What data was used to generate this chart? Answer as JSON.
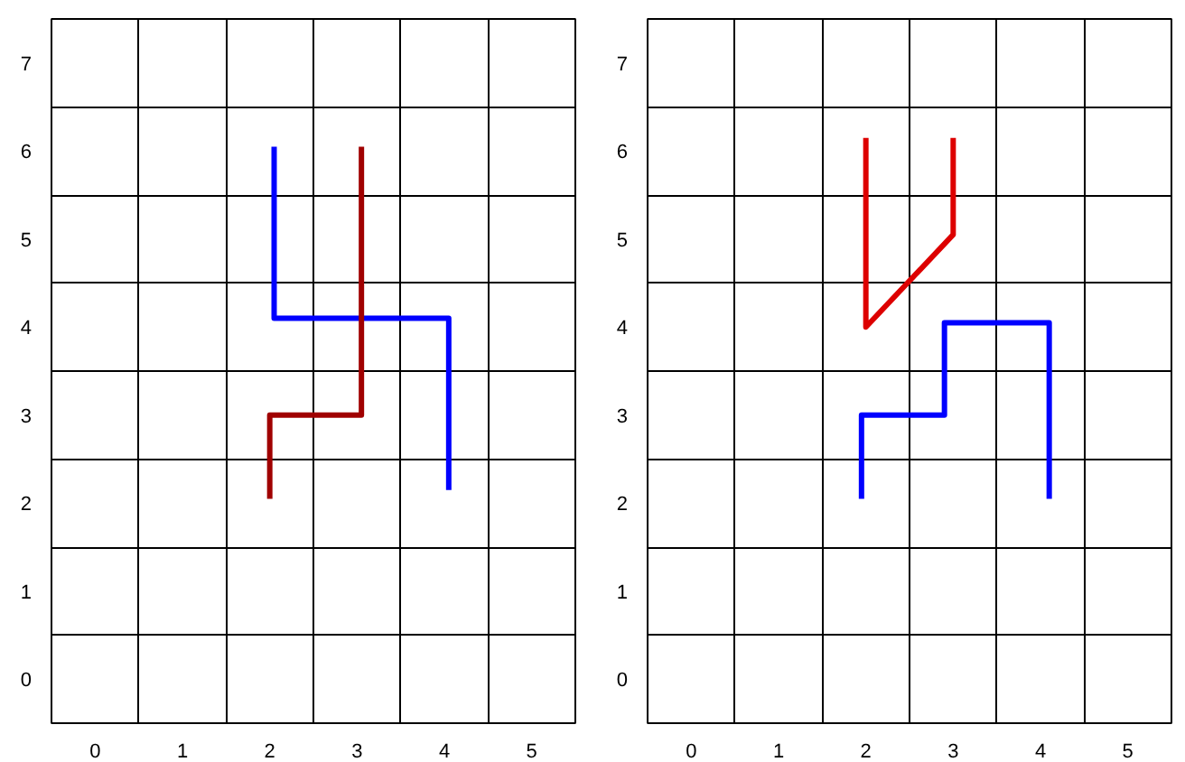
{
  "chart_data": [
    {
      "type": "line",
      "xlim": [
        -0.5,
        5.5
      ],
      "ylim": [
        -0.5,
        7.5
      ],
      "grid": true,
      "line_style": "solid",
      "xticks": [
        {
          "value": -0.5,
          "label": null
        },
        0,
        {
          "value": 0.5,
          "label": null
        },
        1,
        {
          "value": 1.5,
          "label": null
        },
        2,
        {
          "value": 2.5,
          "label": null
        },
        3,
        {
          "value": 3.5,
          "label": null
        },
        4,
        {
          "value": 4.5,
          "label": null
        },
        5,
        {
          "value": 5.5,
          "label": null
        }
      ],
      "yticks": [
        {
          "value": -0.5,
          "label": null
        },
        0,
        {
          "value": 0.5,
          "label": null
        },
        1,
        {
          "value": 1.5,
          "label": null
        },
        2,
        {
          "value": 2.5,
          "label": null
        },
        3,
        {
          "value": 3.5,
          "label": null
        },
        4,
        {
          "value": 4.5,
          "label": null
        },
        5,
        {
          "value": 5.5,
          "label": null
        },
        6,
        {
          "value": 6.5,
          "label": null
        },
        7,
        {
          "value": 7.5,
          "label": null
        }
      ],
      "series": [
        {
          "color": "#0000ff",
          "x": [
            2.05,
            2.05,
            4.05,
            4.05
          ],
          "values": [
            6.05,
            4.1,
            4.1,
            2.15
          ]
        },
        {
          "color": "#a00000",
          "x": [
            2,
            2,
            3.05,
            3.05
          ],
          "values": [
            2.05,
            3,
            3,
            6.05
          ]
        }
      ]
    },
    {
      "type": "line",
      "xlim": [
        -0.5,
        5.5
      ],
      "ylim": [
        -0.5,
        7.5
      ],
      "grid": true,
      "line_style": "solid",
      "xticks": [
        {
          "value": -0.5,
          "label": null
        },
        0,
        {
          "value": 0.5,
          "label": null
        },
        1,
        {
          "value": 1.5,
          "label": null
        },
        2,
        {
          "value": 2.5,
          "label": null
        },
        3,
        {
          "value": 3.5,
          "label": null
        },
        4,
        {
          "value": 4.5,
          "label": null
        },
        5,
        {
          "value": 5.5,
          "label": null
        }
      ],
      "yticks": [
        {
          "value": -0.5,
          "label": null
        },
        0,
        {
          "value": 0.5,
          "label": null
        },
        1,
        {
          "value": 1.5,
          "label": null
        },
        2,
        {
          "value": 2.5,
          "label": null
        },
        3,
        {
          "value": 3.5,
          "label": null
        },
        4,
        {
          "value": 4.5,
          "label": null
        },
        5,
        {
          "value": 5.5,
          "label": null
        },
        6,
        {
          "value": 6.5,
          "label": null
        },
        7,
        {
          "value": 7.5,
          "label": null
        }
      ],
      "series": [
        {
          "color": "#dd0000",
          "x": [
            2,
            2,
            3,
            3
          ],
          "values": [
            6.15,
            4,
            5.05,
            6.15
          ]
        },
        {
          "color": "#0000ff",
          "x": [
            1.95,
            1.95,
            2.9,
            2.9,
            4.1,
            4.1
          ],
          "values": [
            2.05,
            3,
            3,
            4.05,
            4.05,
            2.05
          ]
        }
      ]
    }
  ]
}
